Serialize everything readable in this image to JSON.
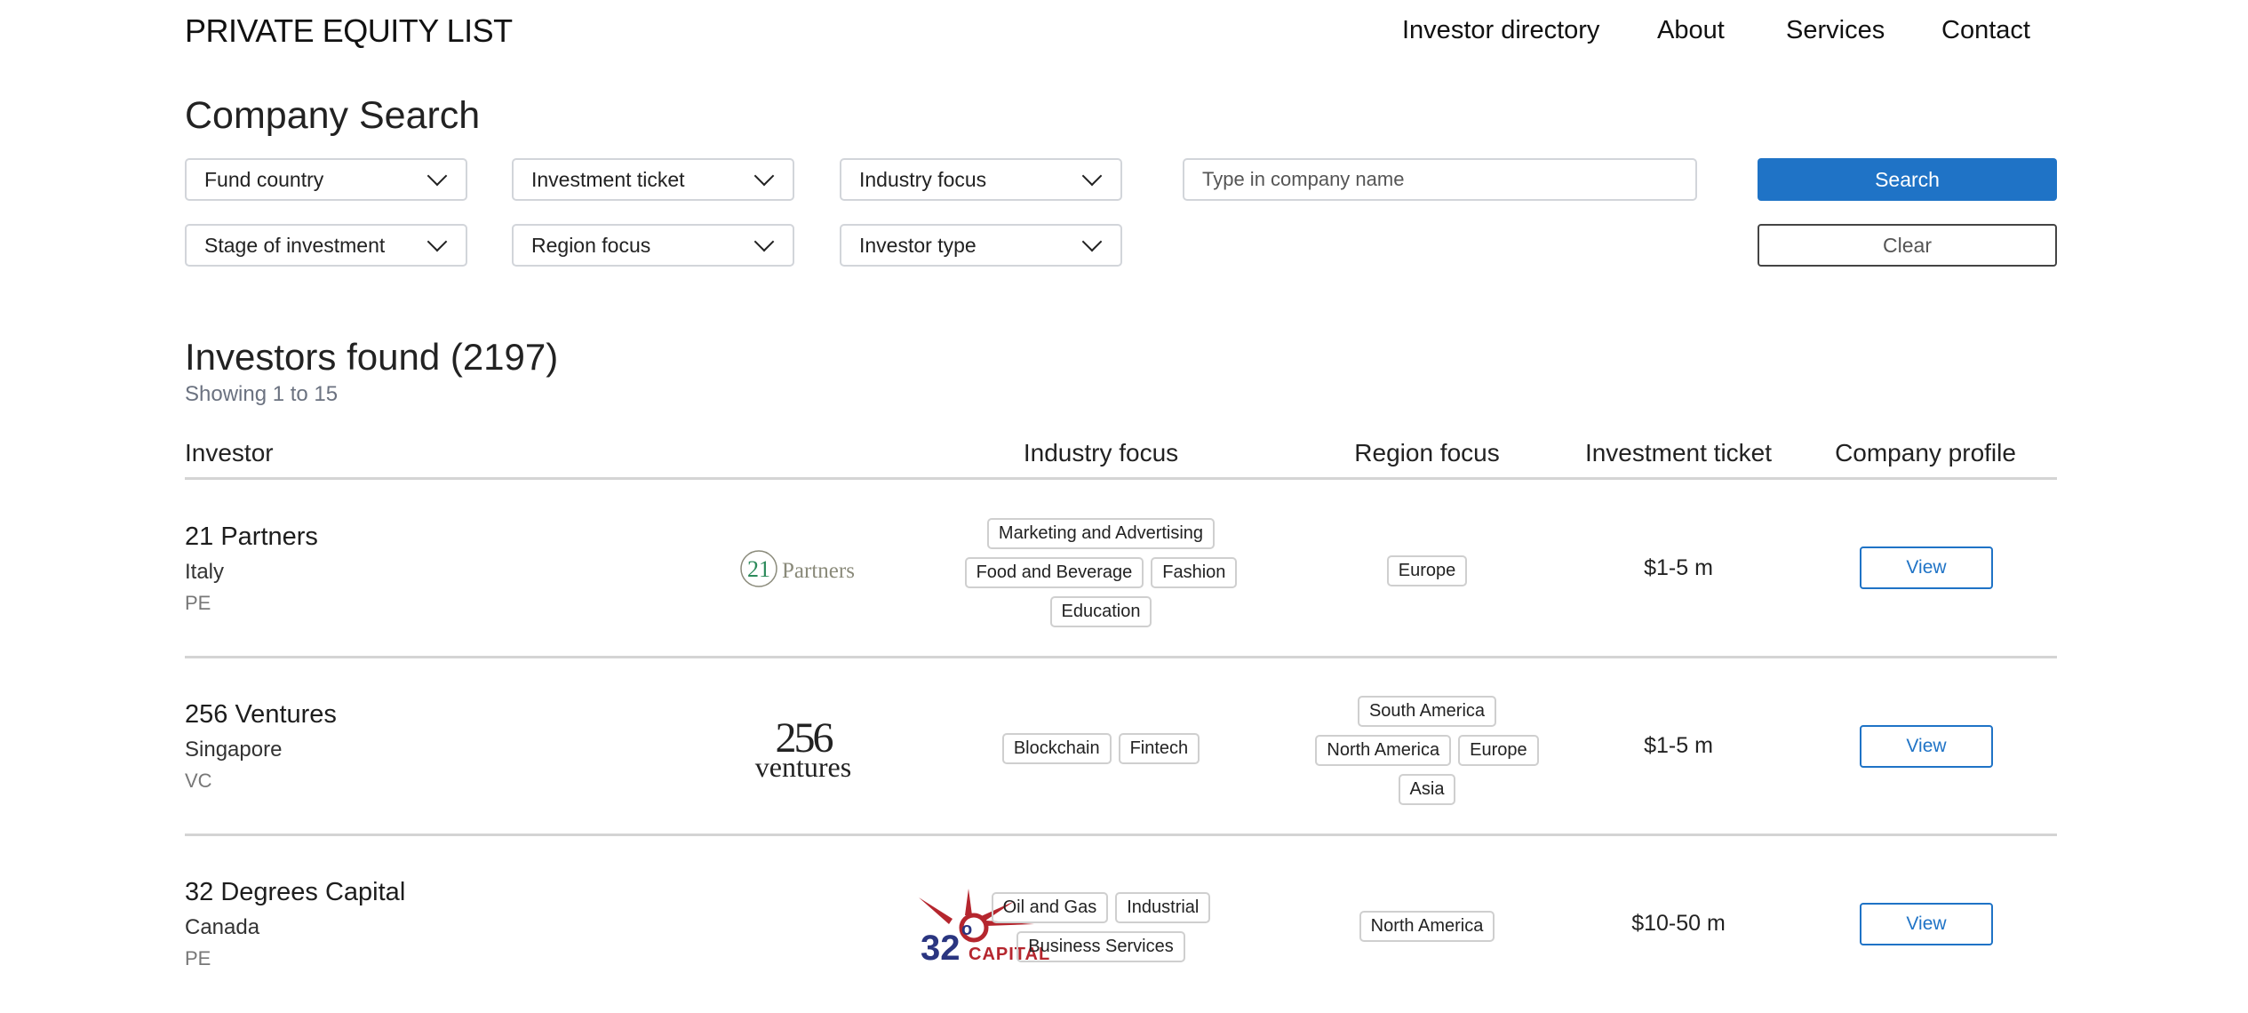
{
  "header": {
    "brand": "PRIVATE EQUITY LIST",
    "nav": [
      "Investor directory",
      "About",
      "Services",
      "Contact"
    ]
  },
  "search": {
    "title": "Company Search",
    "filters": [
      "Fund country",
      "Investment ticket",
      "Industry focus",
      "Stage of investment",
      "Region focus",
      "Investor type"
    ],
    "company_placeholder": "Type in company name",
    "search_label": "Search",
    "clear_label": "Clear"
  },
  "results": {
    "title": "Investors found (2197)",
    "showing": "Showing 1 to 15",
    "columns": [
      "Investor",
      "Industry focus",
      "Region focus",
      "Investment ticket",
      "Company profile"
    ],
    "view_label": "View",
    "rows": [
      {
        "name": "21 Partners",
        "country": "Italy",
        "type": "PE",
        "logo": "21 Partners",
        "industry": [
          [
            "Marketing and Advertising"
          ],
          [
            "Food and Beverage",
            "Fashion"
          ],
          [
            "Education"
          ]
        ],
        "region": [
          [
            "Europe"
          ]
        ],
        "ticket": "$1-5 m"
      },
      {
        "name": "256 Ventures",
        "country": "Singapore",
        "type": "VC",
        "logo": "256 ventures",
        "industry": [
          [
            "Blockchain",
            "Fintech"
          ]
        ],
        "region": [
          [
            "South America"
          ],
          [
            "North America",
            "Europe"
          ],
          [
            "Asia"
          ]
        ],
        "ticket": "$1-5 m"
      },
      {
        "name": "32 Degrees Capital",
        "country": "Canada",
        "type": "PE",
        "logo": "32° CAPITAL",
        "industry": [
          [
            "Oil and Gas",
            "Industrial"
          ],
          [
            "Business Services"
          ]
        ],
        "region": [
          [
            "North America"
          ]
        ],
        "ticket": "$10-50 m"
      }
    ]
  },
  "colors": {
    "accent": "#1f73c6",
    "border": "#d2d5da",
    "muted": "#6b7280"
  }
}
